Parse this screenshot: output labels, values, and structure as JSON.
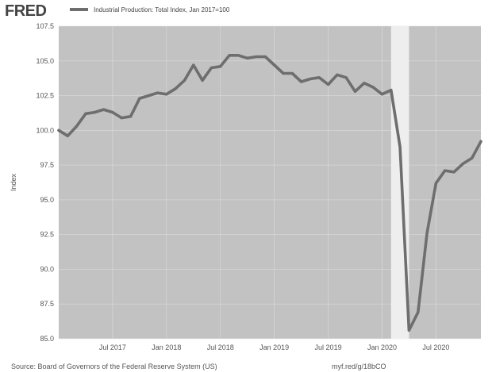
{
  "logo": {
    "text": "FRED"
  },
  "colors": {
    "plot_bg": "#c2c2c2",
    "recession": "#eeeeee",
    "line": "#6e6e6e",
    "grid": "#dcdcdc"
  },
  "footer": {
    "source": "Source: Board of Governors of the Federal Reserve System (US)",
    "url": "myf.red/g/18bCO"
  },
  "chart_data": {
    "type": "line",
    "legend": "Industrial Production: Total Index, Jan 2017=100",
    "ylabel": "Index",
    "ylim": [
      85.0,
      107.5
    ],
    "xlim": [
      "2017-01",
      "2020-12"
    ],
    "yticks": [
      "85.0",
      "87.5",
      "90.0",
      "92.5",
      "95.0",
      "97.5",
      "100.0",
      "102.5",
      "105.0",
      "107.5"
    ],
    "xticks": [
      {
        "date": "2017-07",
        "label": "Jul 2017"
      },
      {
        "date": "2018-01",
        "label": "Jan 2018"
      },
      {
        "date": "2018-07",
        "label": "Jul 2018"
      },
      {
        "date": "2019-01",
        "label": "Jan 2019"
      },
      {
        "date": "2019-07",
        "label": "Jul 2019"
      },
      {
        "date": "2020-01",
        "label": "Jan 2020"
      },
      {
        "date": "2020-07",
        "label": "Jul 2020"
      }
    ],
    "recession": [
      "2020-02",
      "2020-04"
    ],
    "grid": true,
    "series": [
      {
        "x": [
          "2017-01",
          "2017-02",
          "2017-03",
          "2017-04",
          "2017-05",
          "2017-06",
          "2017-07",
          "2017-08",
          "2017-09",
          "2017-10",
          "2017-11",
          "2017-12",
          "2018-01",
          "2018-02",
          "2018-03",
          "2018-04",
          "2018-05",
          "2018-06",
          "2018-07",
          "2018-08",
          "2018-09",
          "2018-10",
          "2018-11",
          "2018-12",
          "2019-01",
          "2019-02",
          "2019-03",
          "2019-04",
          "2019-05",
          "2019-06",
          "2019-07",
          "2019-08",
          "2019-09",
          "2019-10",
          "2019-11",
          "2019-12",
          "2020-01",
          "2020-02",
          "2020-03",
          "2020-04",
          "2020-05",
          "2020-06",
          "2020-07",
          "2020-08",
          "2020-09",
          "2020-10",
          "2020-11",
          "2020-12"
        ],
        "y": [
          100.0,
          99.6,
          100.3,
          101.2,
          101.3,
          101.5,
          101.3,
          100.9,
          101.0,
          102.3,
          102.5,
          102.7,
          102.6,
          103.0,
          103.6,
          104.7,
          103.6,
          104.5,
          104.6,
          105.4,
          105.4,
          105.2,
          105.3,
          105.3,
          104.7,
          104.1,
          104.1,
          103.5,
          103.7,
          103.8,
          103.3,
          104.0,
          103.8,
          102.8,
          103.4,
          103.1,
          102.6,
          102.9,
          98.8,
          85.6,
          86.9,
          92.6,
          96.2,
          97.1,
          97.0,
          97.6,
          98.0,
          99.2
        ]
      }
    ]
  }
}
